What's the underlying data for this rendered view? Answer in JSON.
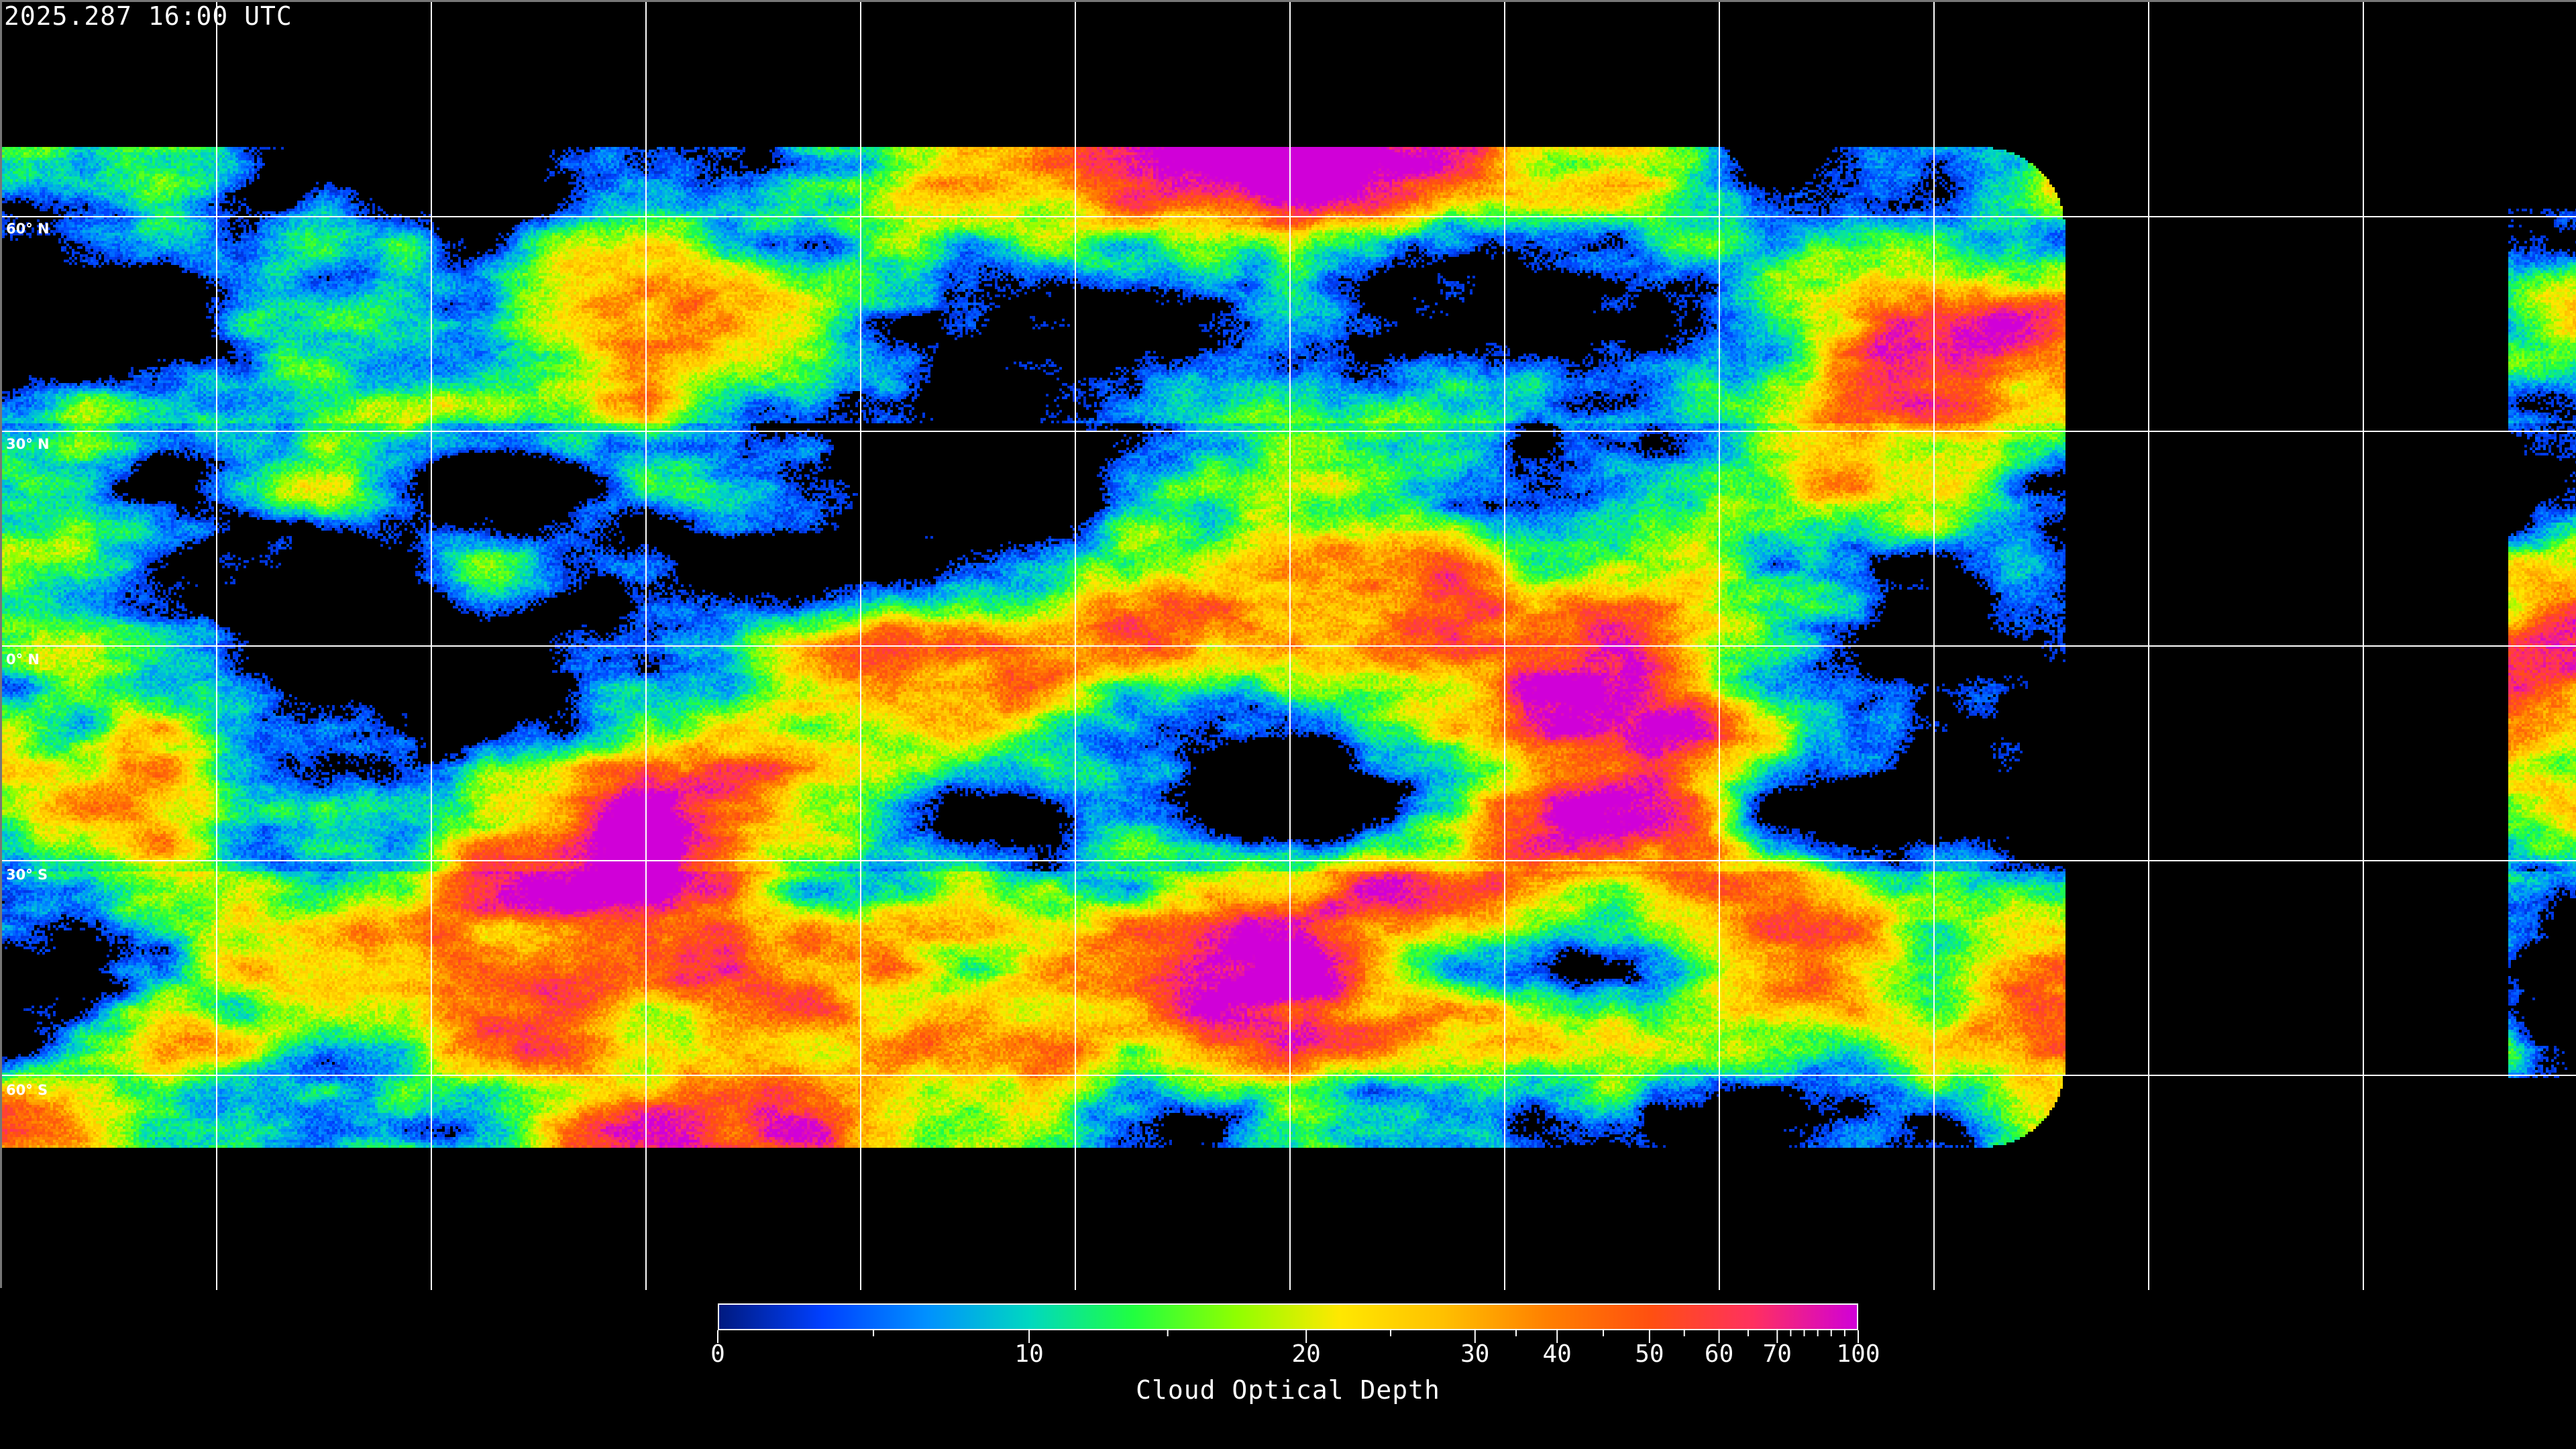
{
  "timestamp": "2025.287 16:00 UTC",
  "map": {
    "projection": "equirectangular",
    "meridian_spacing_deg": 30,
    "parallel_spacing_deg": 30,
    "gridline_color": "#ffffff",
    "coastline_color": "#ffffff",
    "background": "#000000",
    "lat_labels": [
      "60° N",
      "30° N",
      "0° N",
      "30° S",
      "60° S"
    ]
  },
  "colorbar": {
    "title": "Cloud Optical Depth",
    "range": [
      0,
      100
    ],
    "major_ticks": [
      "0",
      "10",
      "20",
      "30",
      "40",
      "50",
      "60",
      "70",
      "100"
    ],
    "minor_ticks": [
      5,
      15,
      25,
      35,
      45,
      55,
      65,
      75,
      80,
      85,
      90,
      95
    ],
    "colors": [
      "#001a80",
      "#0040ff",
      "#0090ff",
      "#00d8c0",
      "#20ff40",
      "#90ff00",
      "#ffe800",
      "#ffc000",
      "#ff8000",
      "#ff5010",
      "#ff3060",
      "#d000d8"
    ]
  }
}
